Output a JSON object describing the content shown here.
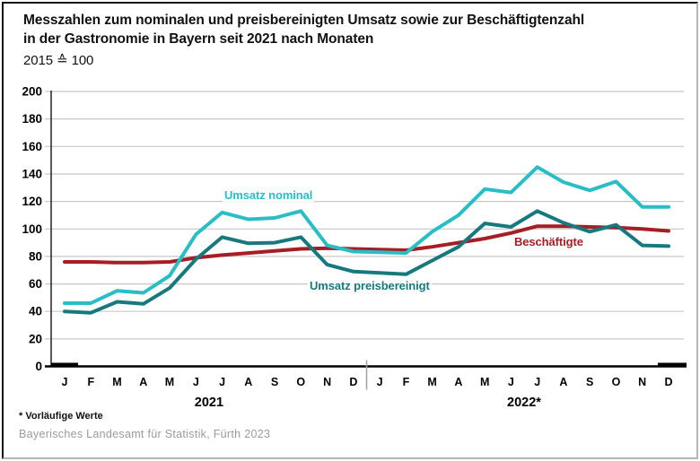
{
  "title": {
    "line1": "Messzahlen zum nominalen und preisbereinigten Umsatz sowie zur Beschäftigtenzahl",
    "line2": "in der Gastronomie in Bayern seit 2021 nach Monaten",
    "subtitle": "2015 ≙ 100"
  },
  "footnote": "* Vorläufige Werte",
  "source": "Bayerisches Landesamt für Statistik, Fürth 2023",
  "colors": {
    "grid": "#c8c8c8",
    "axis": "#000000",
    "separator": "#a0a0a0",
    "source_text": "#9b9b9b"
  },
  "chart_data": {
    "type": "line",
    "x_categories": [
      "J",
      "F",
      "M",
      "A",
      "M",
      "J",
      "J",
      "A",
      "S",
      "O",
      "N",
      "D",
      "J",
      "F",
      "M",
      "A",
      "M",
      "J",
      "J",
      "A",
      "S",
      "O",
      "N",
      "D"
    ],
    "year_groups": [
      {
        "label": "2021",
        "from": 0,
        "to": 11
      },
      {
        "label": "2022*",
        "from": 12,
        "to": 23
      }
    ],
    "ylim": [
      0,
      200
    ],
    "ytick_step": 20,
    "grid": true,
    "legend_position": "inline-annotations",
    "series": [
      {
        "name": "Umsatz nominal",
        "color": "#29bec6",
        "values": [
          46,
          46,
          55,
          53.5,
          66,
          96,
          112,
          107,
          108,
          113,
          88,
          83.5,
          83,
          82.5,
          98,
          110,
          129,
          126.5,
          145,
          134,
          128,
          134.5,
          116,
          116
        ]
      },
      {
        "name": "Umsatz preisbereinigt",
        "color": "#17797e",
        "values": [
          40,
          39,
          47,
          45.5,
          57,
          78,
          94,
          89.5,
          90,
          94,
          74,
          69,
          68,
          67,
          77,
          87,
          104,
          101.5,
          113,
          104.5,
          98,
          103,
          88,
          87.5
        ]
      },
      {
        "name": "Beschäftigte",
        "color": "#a51d25",
        "values": [
          76,
          76,
          75.5,
          75.5,
          76,
          79,
          81,
          82.5,
          84,
          85.5,
          86,
          85.5,
          85,
          84.5,
          87,
          90,
          93,
          97,
          102,
          102,
          101.5,
          101,
          100,
          98.5
        ]
      }
    ]
  }
}
